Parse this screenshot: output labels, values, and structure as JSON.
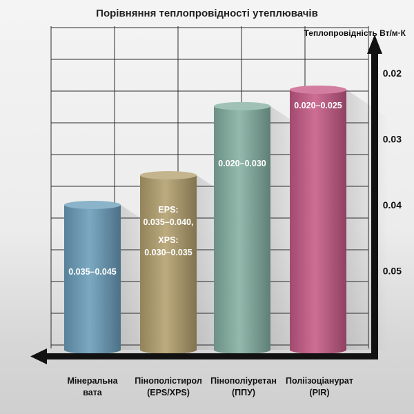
{
  "chart_data": {
    "type": "bar",
    "title": "Порівняння теплопровідності утеплювачів",
    "ylabel": "Теплопровідність Вт/м·К",
    "yticks": [
      {
        "label": "0.02",
        "value": 0.02
      },
      {
        "label": "0.03",
        "value": 0.03
      },
      {
        "label": "0.04",
        "value": 0.04
      },
      {
        "label": "0.05",
        "value": 0.05
      }
    ],
    "y_inverted": true,
    "ylim": [
      0.062,
      0.018
    ],
    "grid": true,
    "categories": [
      {
        "line1": "Мінеральна",
        "line2": "вата"
      },
      {
        "line1": "Пінополістирол",
        "line2": "(EPS/XPS)"
      },
      {
        "line1": "Пінополіуретан",
        "line2": "(ППУ)"
      },
      {
        "line1": "Поліізоціанурат",
        "line2": "(PIR)"
      }
    ],
    "values": [
      0.04,
      0.0355,
      0.025,
      0.0225
    ],
    "value_labels": [
      [
        "0.035–0.045"
      ],
      [
        "EPS:",
        "0.035–0.040,",
        "XPS:",
        "0.030–0.035"
      ],
      [
        "0.020–0.030"
      ],
      [
        "0.020–0.025"
      ]
    ],
    "colors": [
      "#6a9dba",
      "#b3a06e",
      "#84b0a2",
      "#c65a87"
    ]
  }
}
